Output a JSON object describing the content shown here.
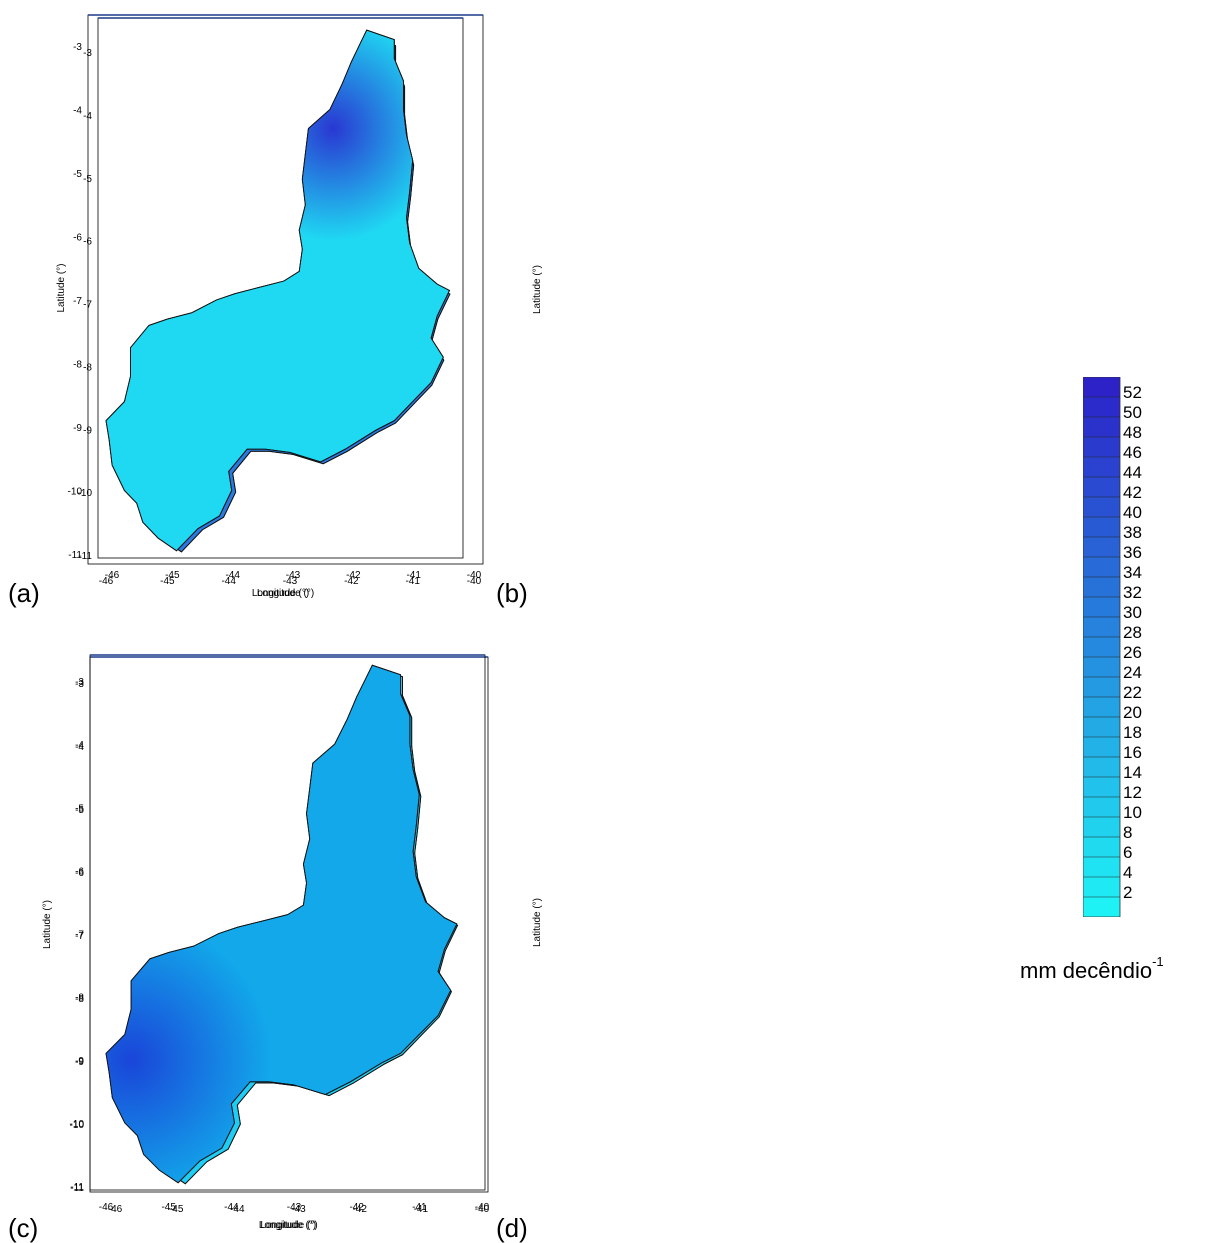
{
  "panels": [
    {
      "label": "(a)",
      "xlabel": "Longitude (°)",
      "ylabel": "Latitude (°)",
      "xticks": [
        "-46",
        "-45",
        "-44",
        "-43",
        "-42",
        "-41",
        "-40"
      ],
      "yticks": [
        "-3",
        "-4",
        "-5",
        "-6",
        "-7",
        "-8",
        "-9",
        "-10",
        "-11"
      ],
      "fill_base": "#2a79e0",
      "hot_fill": "#3a2bcc",
      "hot_region": "north-center and south-west"
    },
    {
      "label": "(b)",
      "xlabel": "Longitude (°)",
      "ylabel": "Latitude (°)",
      "xticks": [
        "-46",
        "-45",
        "-44",
        "-43",
        "-42",
        "-41",
        "-40"
      ],
      "yticks": [
        "-3",
        "-4",
        "-5",
        "-6",
        "-7",
        "-8",
        "-9",
        "-10",
        "-11"
      ],
      "fill_base": "#1fd8f2",
      "hot_fill": "#2a2fd0",
      "hot_region": "north"
    },
    {
      "label": "(c)",
      "xlabel": "Longitude (°)",
      "ylabel": "Latitude (°)",
      "xticks": [
        "-46",
        "-45",
        "-44",
        "-43",
        "-42",
        "-41",
        "-40"
      ],
      "yticks": [
        "-3",
        "-4",
        "-5",
        "-6",
        "-7",
        "-8",
        "-9",
        "-10",
        "-11"
      ],
      "fill_base": "#1ecdf3",
      "hot_fill": "#1d55dc",
      "hot_region": "far north"
    },
    {
      "label": "(d)",
      "xlabel": "Longitude (°)",
      "ylabel": "Latitude (°)",
      "xticks": [
        "-46",
        "-45",
        "-44",
        "-43",
        "-42",
        "-41",
        "-40"
      ],
      "yticks": [
        "-3",
        "-4",
        "-5",
        "-6",
        "-7",
        "-8",
        "-9",
        "-10",
        "-11"
      ],
      "fill_base": "#12a8ea",
      "hot_fill": "#1a40d8",
      "hot_region": "west"
    }
  ],
  "legend": {
    "values": [
      "52",
      "50",
      "48",
      "46",
      "44",
      "42",
      "40",
      "38",
      "36",
      "34",
      "32",
      "30",
      "28",
      "26",
      "24",
      "22",
      "20",
      "18",
      "16",
      "14",
      "12",
      "10",
      "8",
      "6",
      "4",
      "2"
    ],
    "color_top": "#2c22c8",
    "color_bottom": "#1ef2f5",
    "units_text": "mm decêndio",
    "units_exponent": "-1"
  }
}
